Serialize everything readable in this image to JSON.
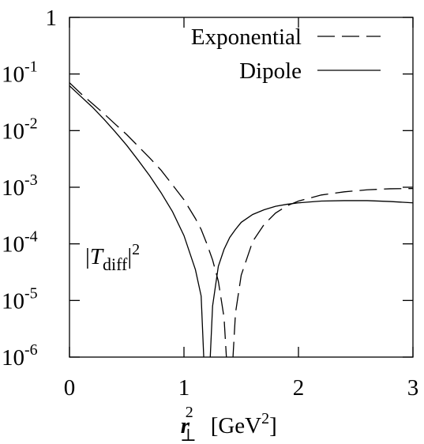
{
  "chart_data": {
    "type": "line",
    "x_label": {
      "symbol": "r",
      "sub": "⊥",
      "sup": "2",
      "unit": "[GeV",
      "unit_sup": "2",
      "unit_close": "]"
    },
    "annotation": {
      "open": "|",
      "symbol": "T",
      "sub": "diff",
      "close": "|",
      "sup": "2"
    },
    "x": [
      0,
      0.1,
      0.2,
      0.3,
      0.4,
      0.5,
      0.6,
      0.7,
      0.8,
      0.9,
      1.0,
      1.1,
      1.15,
      1.2,
      1.25,
      1.3,
      1.35,
      1.4,
      1.45,
      1.5,
      1.6,
      1.7,
      1.8,
      1.9,
      2.0,
      2.2,
      2.4,
      2.6,
      2.8,
      3.0
    ],
    "series": [
      {
        "name": "Exponential",
        "color": "#000000",
        "style": "dashed",
        "values": [
          0.07,
          0.045,
          0.03,
          0.02,
          0.013,
          0.0085,
          0.0053,
          0.0033,
          0.002,
          0.0011,
          0.0006,
          0.00028,
          0.00018,
          0.0001,
          5.2e-05,
          2.2e-05,
          5e-06,
          1e-07,
          6e-06,
          2.8e-05,
          0.00011,
          0.00022,
          0.00035,
          0.00047,
          0.00057,
          0.00073,
          0.00083,
          0.0009,
          0.00094,
          0.00095
        ]
      },
      {
        "name": "Dipole",
        "color": "#000000",
        "style": "solid",
        "values": [
          0.062,
          0.04,
          0.026,
          0.016,
          0.0095,
          0.0055,
          0.003,
          0.0016,
          0.0008,
          0.00037,
          0.00014,
          3.5e-05,
          1.2e-05,
          5e-08,
          8e-06,
          4e-05,
          8e-05,
          0.00013,
          0.00018,
          0.00024,
          0.00033,
          0.0004,
          0.00046,
          0.0005,
          0.00053,
          0.00057,
          0.00058,
          0.00058,
          0.00056,
          0.00053
        ]
      }
    ],
    "xlim": [
      0,
      3
    ],
    "xticks": [
      0,
      1,
      2,
      3
    ],
    "ylim": [
      1e-06,
      1
    ],
    "log_y": true,
    "yticks": [
      {
        "value": 1e-06,
        "label": "10",
        "exp": "-6"
      },
      {
        "value": 1e-05,
        "label": "10",
        "exp": "-5"
      },
      {
        "value": 0.0001,
        "label": "10",
        "exp": "-4"
      },
      {
        "value": 0.001,
        "label": "10",
        "exp": "-3"
      },
      {
        "value": 0.01,
        "label": "10",
        "exp": "-2"
      },
      {
        "value": 0.1,
        "label": "10",
        "exp": "-1"
      },
      1
    ],
    "legend": "upper-right"
  }
}
